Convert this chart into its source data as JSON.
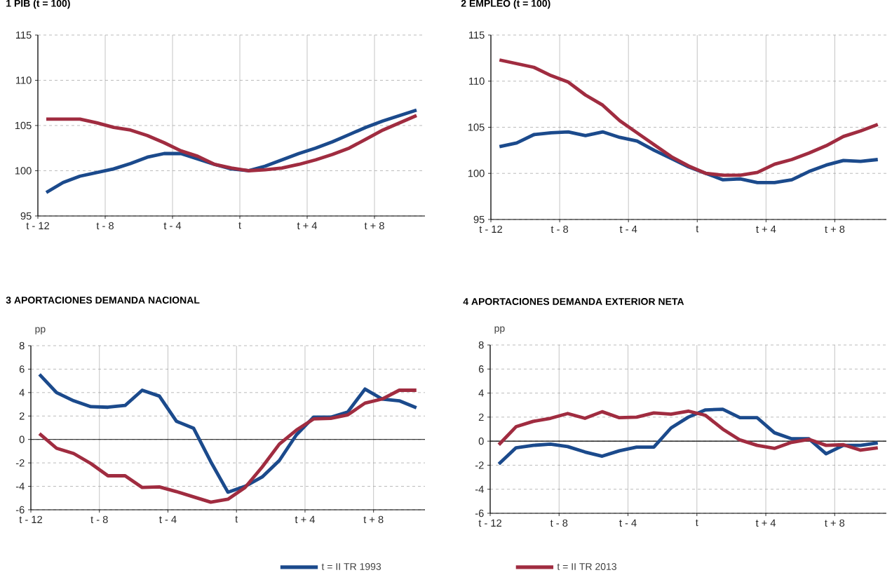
{
  "chart_data": [
    {
      "type": "line",
      "title": "1  PIB (t = 100)",
      "x": [
        -12,
        -11,
        -10,
        -9,
        -8,
        -7,
        -6,
        -5,
        -4,
        -3,
        -2,
        -1,
        0,
        1,
        2,
        3,
        4,
        5,
        6,
        7,
        8,
        9,
        10
      ],
      "xlim": [
        -12.5,
        10.5
      ],
      "xticks": [
        {
          "value": -12.5,
          "label": "t - 12"
        },
        {
          "value": -8.5,
          "label": "t - 8"
        },
        {
          "value": -4.5,
          "label": "t - 4"
        },
        {
          "value": -0.5,
          "label": "t"
        },
        {
          "value": 3.5,
          "label": "t + 4"
        },
        {
          "value": 7.5,
          "label": "t + 8"
        }
      ],
      "ylim": [
        95,
        115
      ],
      "yticks": [
        95,
        100,
        105,
        110,
        115
      ],
      "grid": true,
      "series": [
        {
          "color": "#1b4a8c",
          "values": [
            97.6,
            98.7,
            99.4,
            99.8,
            100.2,
            100.8,
            101.5,
            101.9,
            101.9,
            101.3,
            100.7,
            100.2,
            100.0,
            100.5,
            101.2,
            101.9,
            102.5,
            103.2,
            104.0,
            104.8,
            105.5,
            106.1,
            106.7
          ]
        },
        {
          "color": "#a02c40",
          "values": [
            105.7,
            105.7,
            105.7,
            105.3,
            104.8,
            104.5,
            103.9,
            103.1,
            102.2,
            101.6,
            100.7,
            100.3,
            100.0,
            100.1,
            100.3,
            100.7,
            101.2,
            101.8,
            102.5,
            103.5,
            104.5,
            105.3,
            106.1
          ]
        }
      ]
    },
    {
      "type": "line",
      "title": "2  EMPLEO (t = 100)",
      "x": [
        -12,
        -11,
        -10,
        -9,
        -8,
        -7,
        -6,
        -5,
        -4,
        -3,
        -2,
        -1,
        0,
        1,
        2,
        3,
        4,
        5,
        6,
        7,
        8,
        9,
        10
      ],
      "xlim": [
        -12.5,
        10.5
      ],
      "xticks": [
        {
          "value": -12.5,
          "label": "t - 12"
        },
        {
          "value": -8.5,
          "label": "t - 8"
        },
        {
          "value": -4.5,
          "label": "t - 4"
        },
        {
          "value": -0.5,
          "label": "t"
        },
        {
          "value": 3.5,
          "label": "t + 4"
        },
        {
          "value": 7.5,
          "label": "t + 8"
        }
      ],
      "ylim": [
        95,
        115
      ],
      "yticks": [
        95,
        100,
        105,
        110,
        115
      ],
      "grid": true,
      "series": [
        {
          "color": "#1b4a8c",
          "values": [
            102.9,
            103.3,
            104.2,
            104.4,
            104.5,
            104.1,
            104.5,
            103.9,
            103.5,
            102.5,
            101.6,
            100.7,
            100.0,
            99.3,
            99.4,
            99.0,
            99.0,
            99.3,
            100.2,
            100.9,
            101.4,
            101.3,
            101.5
          ]
        },
        {
          "color": "#a02c40",
          "values": [
            112.3,
            111.9,
            111.5,
            110.6,
            109.9,
            108.5,
            107.4,
            105.7,
            104.4,
            103.1,
            101.8,
            100.8,
            100.0,
            99.8,
            99.8,
            100.1,
            101.0,
            101.5,
            102.2,
            103.0,
            104.0,
            104.6,
            105.3
          ]
        }
      ]
    },
    {
      "type": "line",
      "title": "3  APORTACIONES DEMANDA NACIONAL",
      "ylabel": "pp",
      "x": [
        -12,
        -11,
        -10,
        -9,
        -8,
        -7,
        -6,
        -5,
        -4,
        -3,
        -2,
        -1,
        0,
        1,
        2,
        3,
        4,
        5,
        6,
        7,
        8,
        9,
        10
      ],
      "xlim": [
        -12.5,
        10.5
      ],
      "xticks": [
        {
          "value": -12.5,
          "label": "t - 12"
        },
        {
          "value": -8.5,
          "label": "t - 8"
        },
        {
          "value": -4.5,
          "label": "t - 4"
        },
        {
          "value": -0.5,
          "label": "t"
        },
        {
          "value": 3.5,
          "label": "t + 4"
        },
        {
          "value": 7.5,
          "label": "t + 8"
        }
      ],
      "ylim": [
        -6,
        8
      ],
      "yticks": [
        -6,
        -4,
        -2,
        0,
        2,
        4,
        6,
        8
      ],
      "grid": true,
      "legend": "bottom",
      "ref_lines": [
        {
          "axis": "y",
          "value": 0,
          "color": "#000000"
        }
      ],
      "series": [
        {
          "name": "t = II TR 1993",
          "color": "#1b4a8c",
          "values": [
            5.55,
            4.0,
            3.3,
            2.8,
            2.75,
            2.9,
            4.2,
            3.7,
            1.55,
            0.95,
            -1.9,
            -4.5,
            -4.0,
            -3.2,
            -1.8,
            0.4,
            1.9,
            1.9,
            2.35,
            4.3,
            3.45,
            3.3,
            2.7
          ]
        },
        {
          "name": "t = II TR 2013",
          "color": "#a02c40",
          "values": [
            0.5,
            -0.75,
            -1.2,
            -2.05,
            -3.1,
            -3.1,
            -4.1,
            -4.05,
            -4.45,
            -4.9,
            -5.35,
            -5.1,
            -4.1,
            -2.35,
            -0.4,
            0.8,
            1.75,
            1.8,
            2.1,
            3.1,
            3.45,
            4.2,
            4.2
          ]
        }
      ]
    },
    {
      "type": "line",
      "title": "4  APORTACIONES DEMANDA EXTERIOR NETA",
      "ylabel": "pp",
      "x": [
        -12,
        -11,
        -10,
        -9,
        -8,
        -7,
        -6,
        -5,
        -4,
        -3,
        -2,
        -1,
        0,
        1,
        2,
        3,
        4,
        5,
        6,
        7,
        8,
        9,
        10
      ],
      "xlim": [
        -12.5,
        10.5
      ],
      "xticks": [
        {
          "value": -12.5,
          "label": "t - 12"
        },
        {
          "value": -8.5,
          "label": "t - 8"
        },
        {
          "value": -4.5,
          "label": "t - 4"
        },
        {
          "value": -0.5,
          "label": "t"
        },
        {
          "value": 3.5,
          "label": "t + 4"
        },
        {
          "value": 7.5,
          "label": "t + 8"
        }
      ],
      "ylim": [
        -6,
        8
      ],
      "yticks": [
        -6,
        -4,
        -2,
        0,
        2,
        4,
        6,
        8
      ],
      "grid": true,
      "ref_lines": [
        {
          "axis": "y",
          "value": 0,
          "color": "#000000"
        }
      ],
      "series": [
        {
          "color": "#1b4a8c",
          "values": [
            -1.9,
            -0.55,
            -0.35,
            -0.25,
            -0.45,
            -0.9,
            -1.25,
            -0.8,
            -0.5,
            -0.5,
            1.1,
            2.0,
            2.6,
            2.65,
            1.95,
            1.95,
            0.7,
            0.2,
            0.2,
            -1.05,
            -0.35,
            -0.35,
            -0.15
          ]
        },
        {
          "color": "#a02c40",
          "values": [
            -0.3,
            1.2,
            1.65,
            1.9,
            2.3,
            1.9,
            2.45,
            1.95,
            2.0,
            2.35,
            2.25,
            2.5,
            2.15,
            1.0,
            0.1,
            -0.35,
            -0.6,
            -0.1,
            0.15,
            -0.35,
            -0.3,
            -0.75,
            -0.55
          ]
        }
      ]
    }
  ]
}
